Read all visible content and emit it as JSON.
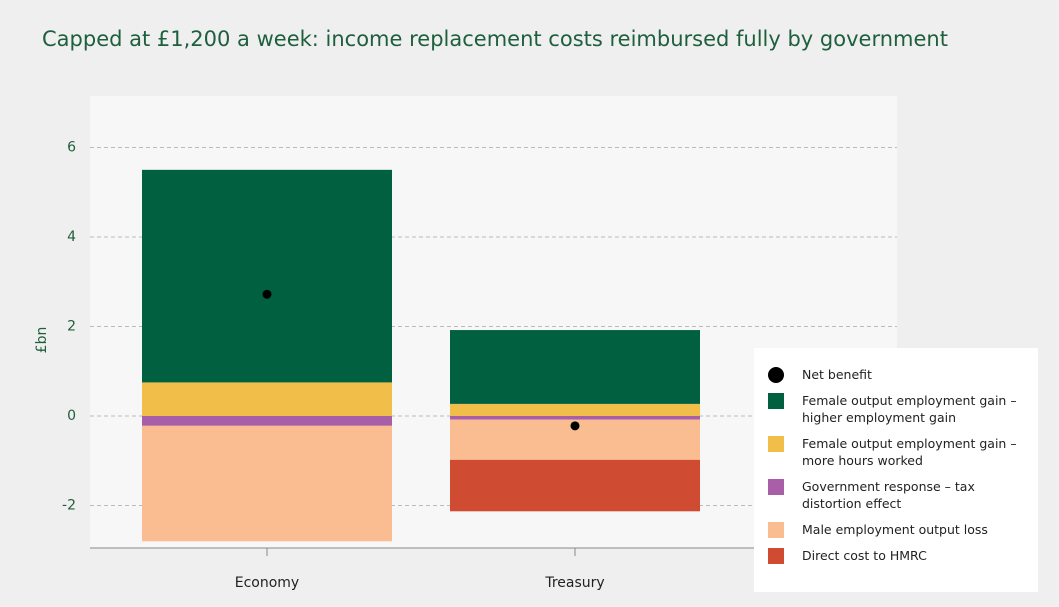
{
  "chart_data": {
    "type": "bar",
    "title": "Capped at £1,200 a week: income replacement costs reimbursed fully by government",
    "ylabel": "£bn",
    "categories": [
      "Economy",
      "Treasury"
    ],
    "net": {
      "name": "Net benefit",
      "color": "#000000",
      "values": [
        2.72,
        -0.22
      ]
    },
    "series": [
      {
        "name": "Female output employment gain – higher employment gain",
        "color": "#00603f",
        "values": [
          4.75,
          1.65
        ]
      },
      {
        "name": "Female output employment gain – more hours worked",
        "color": "#f2be4a",
        "values": [
          0.75,
          0.27
        ]
      },
      {
        "name": "Government response – tax distortion effect",
        "color": "#a95ea8",
        "values": [
          -0.22,
          -0.08
        ]
      },
      {
        "name": "Male employment output loss",
        "color": "#f9bd91",
        "values": [
          -2.58,
          -0.9
        ]
      },
      {
        "name": "Direct cost to HMRC",
        "color": "#cf4b32",
        "values": [
          0,
          -1.15
        ]
      }
    ],
    "ylim": [
      -2.95,
      7.15
    ],
    "yticks": [
      -2,
      0,
      2,
      4,
      6
    ],
    "grid": true,
    "legend": "lower right"
  }
}
